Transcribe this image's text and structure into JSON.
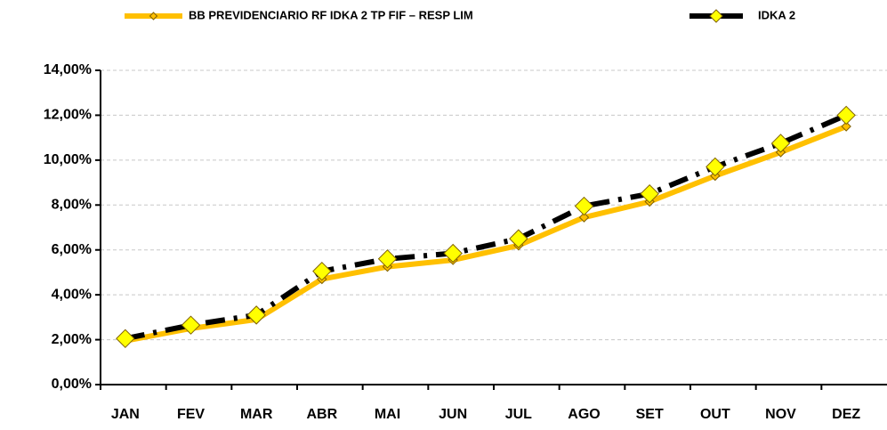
{
  "chart_data": {
    "type": "line",
    "categories": [
      "JAN",
      "FEV",
      "MAR",
      "ABR",
      "MAI",
      "JUN",
      "JUL",
      "AGO",
      "SET",
      "OUT",
      "NOV",
      "DEZ"
    ],
    "series": [
      {
        "name": "BB PREVIDENCIARIO RF IDKA 2 TP FIF – RESP LIM",
        "color": "#ffc000",
        "values": [
          1.95,
          2.5,
          2.9,
          4.7,
          5.25,
          5.55,
          6.2,
          7.45,
          8.15,
          9.3,
          10.35,
          11.5
        ]
      },
      {
        "name": "IDKA 2",
        "color": "#000000",
        "values": [
          2.05,
          2.65,
          3.1,
          5.05,
          5.6,
          5.85,
          6.5,
          7.95,
          8.5,
          9.7,
          10.75,
          12.0
        ]
      }
    ],
    "ylim": [
      0,
      14
    ],
    "yticks": [
      {
        "value": 0,
        "label": "0,00%"
      },
      {
        "value": 2,
        "label": "2,00%"
      },
      {
        "value": 4,
        "label": "4,00%"
      },
      {
        "value": 6,
        "label": "6,00%"
      },
      {
        "value": 8,
        "label": "8,00%"
      },
      {
        "value": 10,
        "label": "10,00%"
      },
      {
        "value": 12,
        "label": "12,00%"
      },
      {
        "value": 14,
        "label": "14,00%"
      }
    ],
    "grid": true
  }
}
